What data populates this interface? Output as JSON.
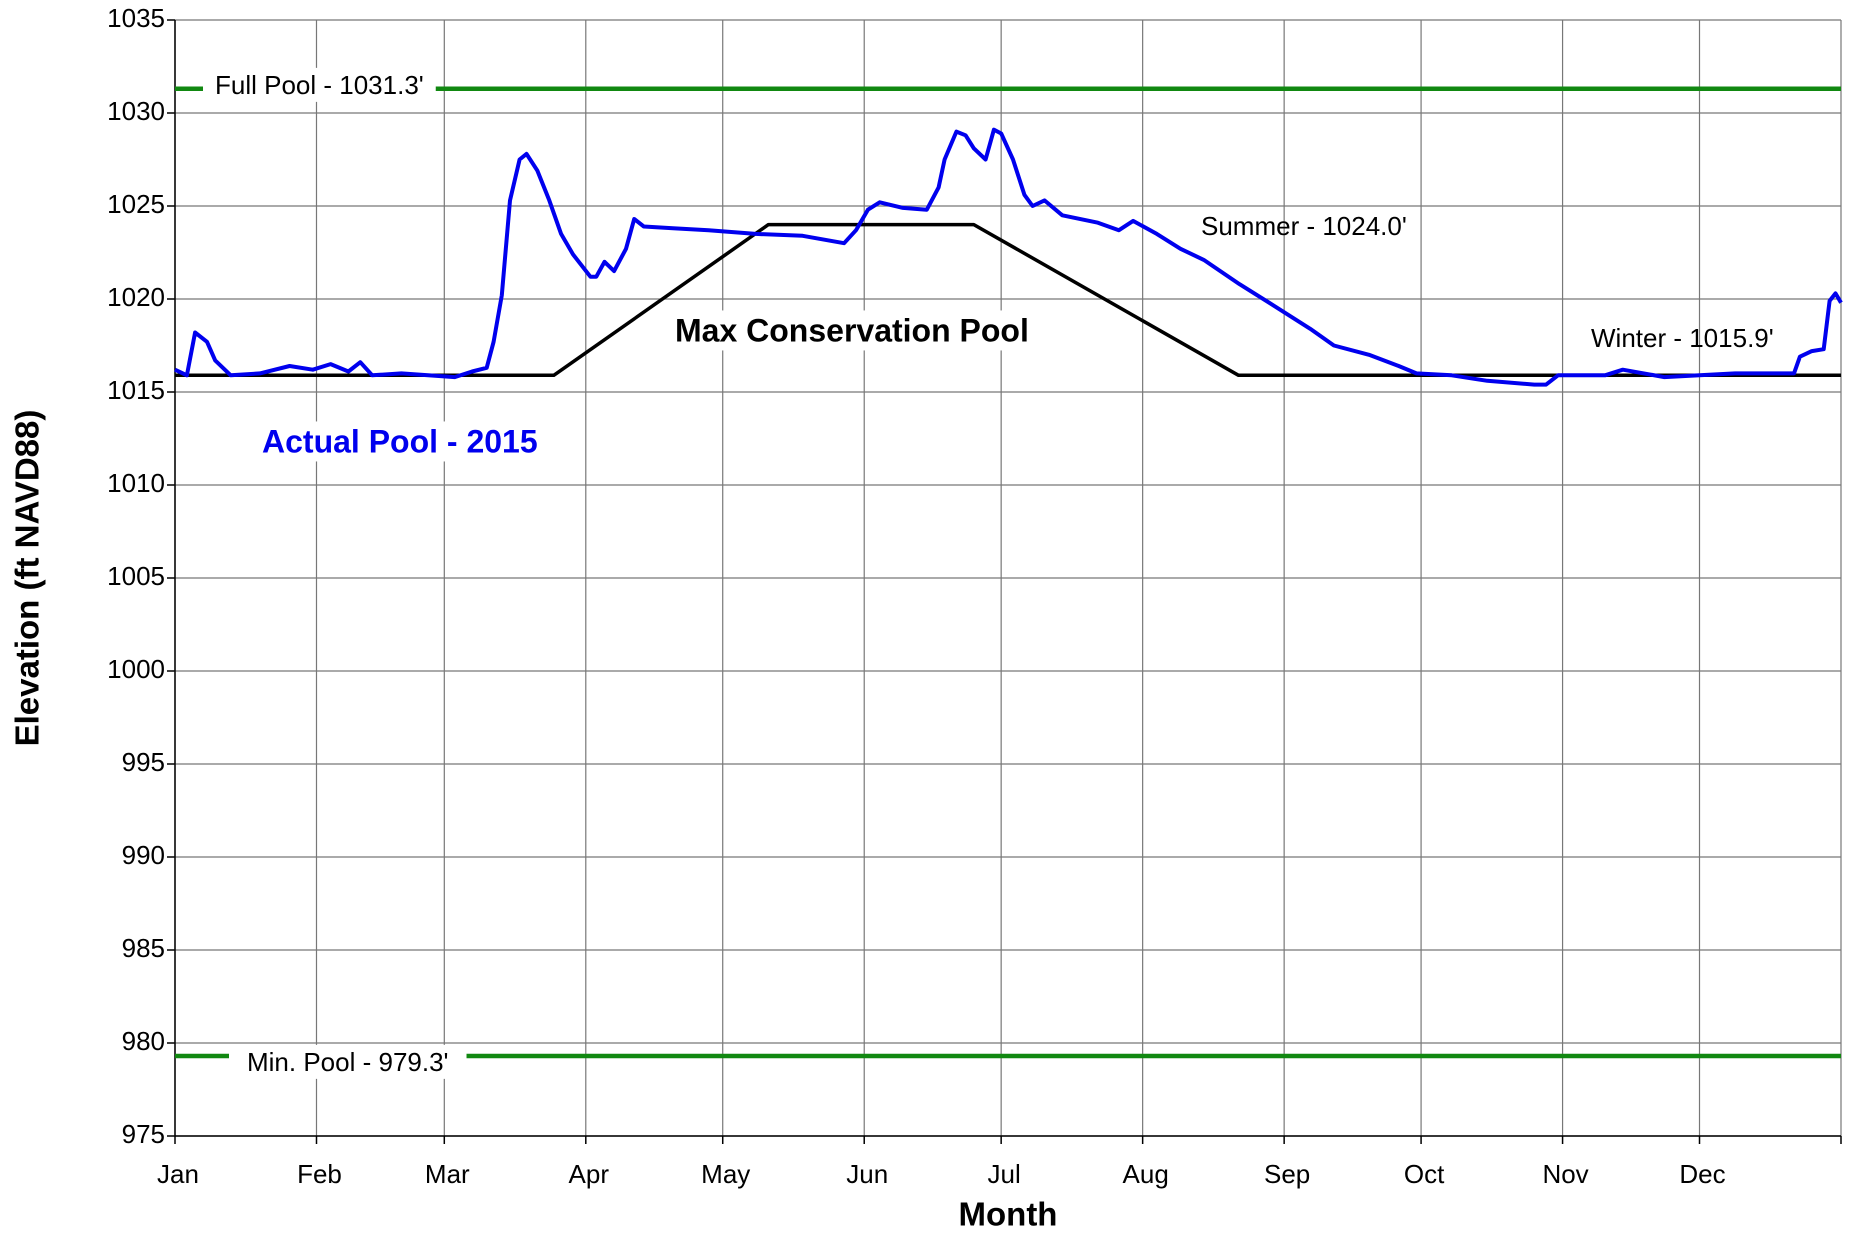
{
  "chart_data": {
    "type": "line",
    "xlabel": "Month",
    "ylabel": "Elevation (ft NAVD88)",
    "xlim": [
      0,
      365
    ],
    "xticks": [
      {
        "value": 0,
        "label": "Jan"
      },
      {
        "value": 31,
        "label": "Feb"
      },
      {
        "value": 59,
        "label": "Mar"
      },
      {
        "value": 90,
        "label": "Apr"
      },
      {
        "value": 120,
        "label": "May"
      },
      {
        "value": 151,
        "label": "Jun"
      },
      {
        "value": 181,
        "label": "Jul"
      },
      {
        "value": 212,
        "label": "Aug"
      },
      {
        "value": 243,
        "label": "Sep"
      },
      {
        "value": 273,
        "label": "Oct"
      },
      {
        "value": 304,
        "label": "Nov"
      },
      {
        "value": 334,
        "label": "Dec"
      },
      {
        "value": 365,
        "label": ""
      }
    ],
    "ylim": [
      975,
      1035
    ],
    "yticks": [
      975,
      980,
      985,
      990,
      995,
      1000,
      1005,
      1010,
      1015,
      1020,
      1025,
      1030,
      1035
    ],
    "grid": true,
    "series": [
      {
        "name": "Full Pool - 1031.3'",
        "color": "#118811",
        "x": [
          0,
          365
        ],
        "values": [
          1031.3,
          1031.3
        ]
      },
      {
        "name": "Min. Pool - 979.3'",
        "color": "#118811",
        "x": [
          0,
          365
        ],
        "values": [
          979.3,
          979.3
        ]
      },
      {
        "name": "Max Conservation Pool",
        "color": "#000000",
        "x": [
          0,
          83,
          130,
          175,
          233,
          365
        ],
        "values": [
          1015.9,
          1015.9,
          1024.0,
          1024.0,
          1015.9,
          1015.9
        ]
      },
      {
        "name": "Actual Pool - 2015",
        "color": "#0000ee",
        "x": [
          0,
          2.6,
          4.4,
          7.0,
          8.8,
          12.2,
          18.6,
          25.1,
          30.2,
          34.1,
          38.0,
          40.6,
          43.2,
          49.6,
          61.3,
          65.1,
          68.3,
          69.8,
          71.6,
          73.4,
          75.5,
          77.0,
          79.4,
          82.0,
          84.6,
          87.2,
          91.0,
          92.3,
          94.1,
          96.2,
          98.8,
          100.6,
          102.7,
          109.1,
          116.9,
          127.2,
          137.5,
          146.6,
          149.2,
          151.8,
          154.4,
          159.5,
          164.7,
          167.3,
          168.6,
          171.2,
          173.2,
          175.0,
          177.6,
          179.4,
          181.0,
          183.6,
          186.1,
          187.9,
          190.5,
          194.4,
          202.2,
          206.8,
          209.9,
          215.1,
          220.3,
          225.4,
          233.2,
          241.0,
          248.7,
          253.9,
          261.6,
          268.1,
          272.0,
          279.7,
          287.5,
          297.8,
          300.4,
          303.0,
          313.3,
          317.2,
          326.3,
          334.0,
          341.8,
          354.7,
          356.0,
          358.6,
          361.2,
          362.5,
          363.8,
          365.0
        ],
        "values": [
          1016.2,
          1015.9,
          1018.2,
          1017.7,
          1016.7,
          1015.9,
          1016.0,
          1016.4,
          1016.2,
          1016.5,
          1016.1,
          1016.6,
          1015.9,
          1016.0,
          1015.8,
          1016.1,
          1016.3,
          1017.7,
          1020.2,
          1025.3,
          1027.5,
          1027.8,
          1026.9,
          1025.3,
          1023.5,
          1022.4,
          1021.2,
          1021.2,
          1022.0,
          1021.5,
          1022.7,
          1024.3,
          1023.9,
          1023.8,
          1023.7,
          1023.5,
          1023.4,
          1023.0,
          1023.7,
          1024.8,
          1025.2,
          1024.9,
          1024.8,
          1026.0,
          1027.5,
          1029.0,
          1028.8,
          1028.1,
          1027.5,
          1029.1,
          1028.9,
          1027.5,
          1025.6,
          1025.0,
          1025.3,
          1024.5,
          1024.1,
          1023.7,
          1024.2,
          1023.5,
          1022.7,
          1022.1,
          1020.8,
          1019.6,
          1018.4,
          1017.5,
          1017.0,
          1016.4,
          1016.0,
          1015.9,
          1015.6,
          1015.4,
          1015.4,
          1015.9,
          1015.9,
          1016.2,
          1015.8,
          1015.9,
          1016.0,
          1016.0,
          1016.9,
          1017.2,
          1017.3,
          1019.9,
          1020.3,
          1019.8
        ]
      }
    ],
    "annotations": [
      "Summer - 1024.0'",
      "Winter - 1015.9'"
    ]
  }
}
